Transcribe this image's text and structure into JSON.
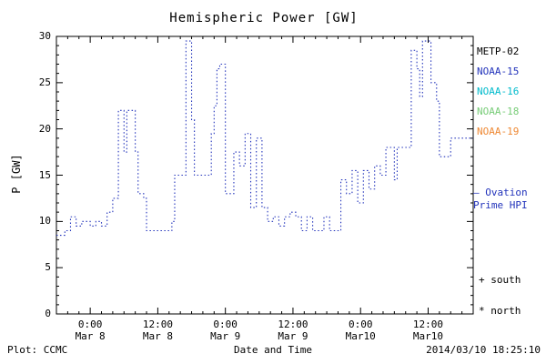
{
  "title": "Hemispheric Power [GW]",
  "axes": {
    "ylabel": "P [GW]",
    "xlabel": "Date and Time"
  },
  "footer": {
    "left": "Plot: CCMC",
    "right": "2014/03/10 18:25:10"
  },
  "legend": {
    "satellites": [
      {
        "label": "METP-02",
        "color": "#000000"
      },
      {
        "label": "NOAA-15",
        "color": "#2233bb"
      },
      {
        "label": "NOAA-16",
        "color": "#00bbcc"
      },
      {
        "label": "NOAA-18",
        "color": "#77cc77"
      },
      {
        "label": "NOAA-19",
        "color": "#ee8833"
      }
    ],
    "model": {
      "line1": "— Ovation",
      "line2": "Prime HPI",
      "color": "#2233bb"
    },
    "markers": [
      {
        "label": "+ south"
      },
      {
        "label": "* north"
      }
    ]
  },
  "chart_data": {
    "type": "line",
    "step": true,
    "line_style": "dotted",
    "color": "#2233bb",
    "title": "Hemispheric Power [GW]",
    "xlabel": "Date and Time",
    "ylabel": "P [GW]",
    "ylim": [
      0,
      30
    ],
    "y_major_ticks": [
      0,
      5,
      10,
      15,
      20,
      25,
      30
    ],
    "x_hours_range": [
      0,
      74
    ],
    "x_ticks": [
      {
        "t": 6,
        "time": "0:00",
        "date": "Mar 8"
      },
      {
        "t": 18,
        "time": "12:00",
        "date": "Mar 8"
      },
      {
        "t": 30,
        "time": "0:00",
        "date": "Mar 9"
      },
      {
        "t": 42,
        "time": "12:00",
        "date": "Mar 9"
      },
      {
        "t": 54,
        "time": "0:00",
        "date": "Mar10"
      },
      {
        "t": 66,
        "time": "12:00",
        "date": "Mar10"
      }
    ],
    "points": [
      [
        0,
        8.5
      ],
      [
        1.5,
        9
      ],
      [
        2.5,
        10.5
      ],
      [
        3.5,
        9.5
      ],
      [
        4.5,
        10
      ],
      [
        6,
        9.5
      ],
      [
        7,
        10
      ],
      [
        8,
        9.5
      ],
      [
        9,
        11
      ],
      [
        10,
        12.5
      ],
      [
        11,
        22
      ],
      [
        12,
        17.5
      ],
      [
        12.5,
        22
      ],
      [
        14,
        17.5
      ],
      [
        14.5,
        13
      ],
      [
        15.5,
        12.5
      ],
      [
        16,
        9
      ],
      [
        19.5,
        9
      ],
      [
        20.5,
        10
      ],
      [
        21,
        15
      ],
      [
        22.5,
        15
      ],
      [
        23,
        29.5
      ],
      [
        24,
        21
      ],
      [
        24.5,
        15
      ],
      [
        27,
        15
      ],
      [
        27.5,
        19.5
      ],
      [
        28,
        22.5
      ],
      [
        28.5,
        26.5
      ],
      [
        29,
        27
      ],
      [
        30,
        13
      ],
      [
        31.5,
        17.5
      ],
      [
        32.5,
        16
      ],
      [
        33.5,
        19.5
      ],
      [
        34.5,
        11.5
      ],
      [
        35.5,
        19
      ],
      [
        36.5,
        11.5
      ],
      [
        37.5,
        10
      ],
      [
        38.5,
        10.5
      ],
      [
        39.5,
        9.5
      ],
      [
        40.5,
        10.5
      ],
      [
        41.5,
        11
      ],
      [
        42.5,
        10.5
      ],
      [
        43.5,
        9
      ],
      [
        44.5,
        10.5
      ],
      [
        45.5,
        9
      ],
      [
        47.5,
        10.5
      ],
      [
        48.5,
        9
      ],
      [
        50.5,
        14.5
      ],
      [
        51.5,
        13
      ],
      [
        52.5,
        15.5
      ],
      [
        53.5,
        12
      ],
      [
        54.5,
        15.5
      ],
      [
        55.5,
        13.5
      ],
      [
        56.5,
        16
      ],
      [
        57.5,
        15
      ],
      [
        58.5,
        18
      ],
      [
        60,
        14.5
      ],
      [
        60.5,
        18
      ],
      [
        62.5,
        18
      ],
      [
        63,
        28.5
      ],
      [
        64,
        26.5
      ],
      [
        64.5,
        23.5
      ],
      [
        65,
        29.5
      ],
      [
        66.5,
        25
      ],
      [
        67.5,
        23
      ],
      [
        68,
        17
      ],
      [
        69.5,
        17
      ],
      [
        70,
        19
      ],
      [
        74,
        19
      ]
    ]
  }
}
